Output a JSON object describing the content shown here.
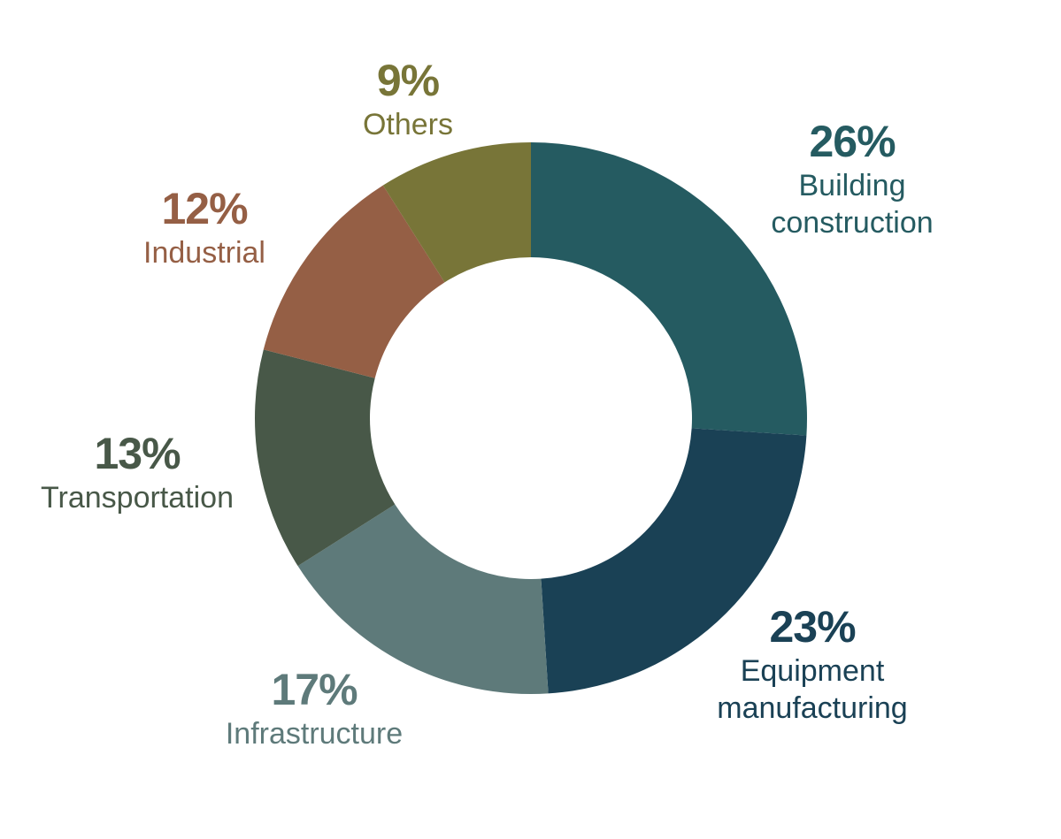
{
  "chart_data": {
    "type": "pie",
    "subtype": "donut",
    "title": "",
    "start_angle_deg": 0,
    "direction": "clockwise",
    "slices": [
      {
        "label_lines": [
          "Building",
          "construction"
        ],
        "value": 26,
        "value_label": "26%",
        "color": "#255b61"
      },
      {
        "label_lines": [
          "Equipment",
          "manufacturing"
        ],
        "value": 23,
        "value_label": "23%",
        "color": "#1a4155"
      },
      {
        "label_lines": [
          "Infrastructure"
        ],
        "value": 17,
        "value_label": "17%",
        "color": "#5e7a7a"
      },
      {
        "label_lines": [
          "Transportation"
        ],
        "value": 13,
        "value_label": "13%",
        "color": "#485848"
      },
      {
        "label_lines": [
          "Industrial"
        ],
        "value": 12,
        "value_label": "12%",
        "color": "#955f45"
      },
      {
        "label_lines": [
          "Others"
        ],
        "value": 9,
        "value_label": "9%",
        "color": "#787538"
      }
    ],
    "legend": "none"
  }
}
